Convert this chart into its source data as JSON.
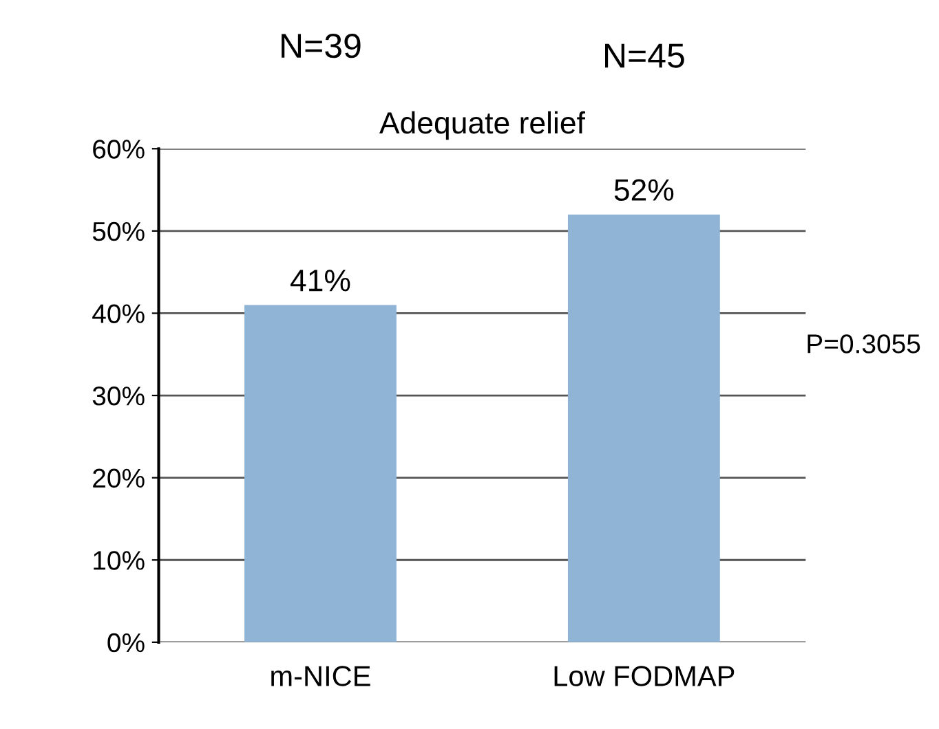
{
  "chart_data": {
    "type": "bar",
    "title": "Adequate relief",
    "categories": [
      "m-NICE",
      "Low FODMAP"
    ],
    "values": [
      41,
      52
    ],
    "color": "#8fb4d6",
    "value_labels": [
      "41%",
      "52%"
    ],
    "ylim": [
      0,
      60
    ],
    "yticks": [
      {
        "value": 0,
        "label": "0%"
      },
      {
        "value": 10,
        "label": "10%"
      },
      {
        "value": 20,
        "label": "20%"
      },
      {
        "value": 30,
        "label": "30%"
      },
      {
        "value": 40,
        "label": "40%"
      },
      {
        "value": 50,
        "label": "50%"
      },
      {
        "value": 60,
        "label": "60%"
      }
    ],
    "grid": "y",
    "annotations": [
      "N=39",
      "N=45",
      "P=0.3055"
    ]
  }
}
